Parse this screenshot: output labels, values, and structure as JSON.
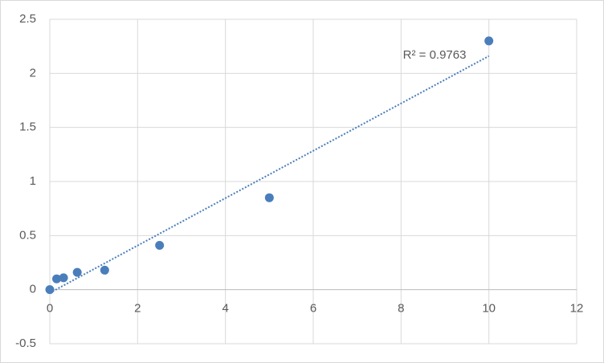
{
  "chart_data": {
    "type": "scatter",
    "x": [
      0,
      0.156,
      0.3125,
      0.625,
      1.25,
      2.5,
      5,
      10
    ],
    "values": [
      0,
      0.1,
      0.11,
      0.16,
      0.18,
      0.41,
      0.85,
      2.3
    ],
    "color": "#4a7ebb",
    "trendline": {
      "x": [
        0,
        10
      ],
      "values": [
        -0.03,
        2.16
      ],
      "color": "#4a7ebb",
      "label": "R² = 0.9763"
    },
    "xlim": [
      0,
      12
    ],
    "xticks": [
      0,
      2,
      4,
      6,
      8,
      10,
      12
    ],
    "ylim": [
      -0.5,
      2.5
    ],
    "yticks": [
      -0.5,
      0,
      0.5,
      1,
      1.5,
      2,
      2.5
    ],
    "grid": true
  }
}
